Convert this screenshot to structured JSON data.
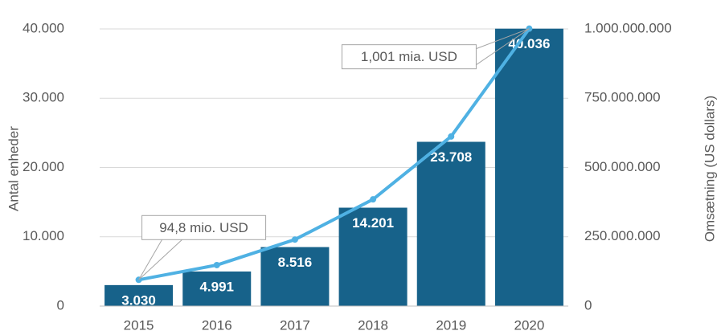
{
  "chart_data": {
    "type": "bar",
    "categories": [
      "2015",
      "2016",
      "2017",
      "2018",
      "2019",
      "2020"
    ],
    "series": [
      {
        "type": "bar",
        "color": "#17628a",
        "values": [
          3030,
          4991,
          8516,
          14201,
          23708,
          40036
        ],
        "value_labels": [
          "3.030",
          "4.991",
          "8.516",
          "14.201",
          "23.708",
          "40.036"
        ]
      },
      {
        "type": "line",
        "axis": "y2",
        "color": "#4fb1e3",
        "values": [
          94800000,
          148000000,
          240000000,
          385000000,
          612000000,
          1001000000
        ],
        "value_labels": [
          "94,8 mio. USD",
          null,
          null,
          null,
          null,
          "1,001 mia. USD"
        ]
      }
    ],
    "y_label": "Antal enheder",
    "y2_label": "Omsætning (US dollars)",
    "ylim": [
      0,
      40000
    ],
    "yticks": [
      0,
      {
        "value": 10000,
        "label": "10.000"
      },
      {
        "value": 20000,
        "label": "20.000"
      },
      {
        "value": 30000,
        "label": "30.000"
      },
      {
        "value": 40000,
        "label": "40.000"
      }
    ],
    "y2lim": [
      0,
      1000000000
    ],
    "y2ticks": [
      0,
      {
        "value": 250000000,
        "label": "250.000.000"
      },
      {
        "value": 500000000,
        "label": "500.000.000"
      },
      {
        "value": 750000000,
        "label": "750.000.000"
      },
      {
        "value": 1000000000,
        "label": "1.000.000.000"
      }
    ],
    "grid": true
  }
}
